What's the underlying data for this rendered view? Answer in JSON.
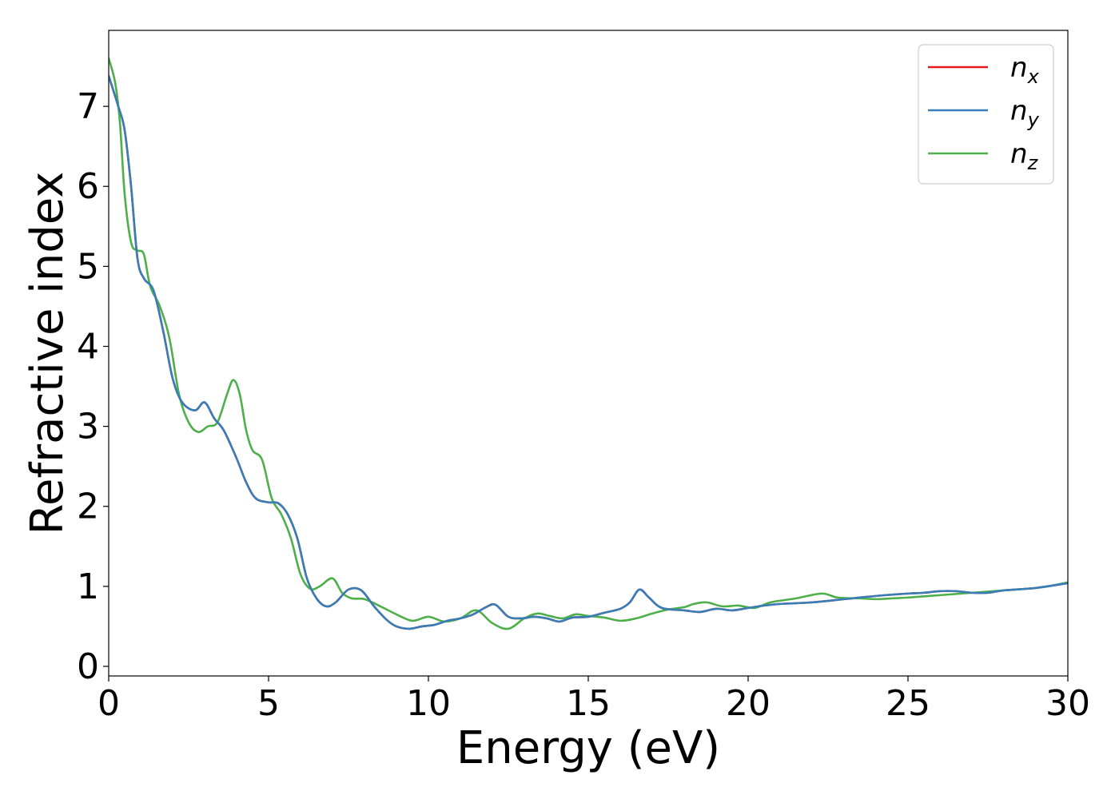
{
  "chart_data": {
    "type": "line",
    "xlabel": "Energy (eV)",
    "ylabel": "Refractive index",
    "xlim": [
      0,
      30
    ],
    "ylim": [
      -0.12,
      7.95
    ],
    "xticks": [
      "0",
      "5",
      "10",
      "15",
      "20",
      "25",
      "30"
    ],
    "yticks": [
      "0",
      "1",
      "2",
      "3",
      "4",
      "5",
      "6",
      "7"
    ],
    "grid": false,
    "legend_position": "top-right",
    "series": [
      {
        "name": "n",
        "subscript": "x",
        "color": "#e41a1c",
        "x": [
          0,
          0.3,
          0.5,
          0.7,
          0.9,
          1.1,
          1.4,
          1.7,
          2.0,
          2.3,
          2.7,
          3.0,
          3.3,
          3.6,
          4.0,
          4.3,
          4.6,
          5.0,
          5.3,
          5.6,
          5.9,
          6.2,
          6.5,
          6.8,
          7.1,
          7.5,
          7.9,
          8.3,
          8.7,
          9.0,
          9.4,
          9.8,
          10.2,
          10.6,
          11.0,
          11.4,
          11.8,
          12.1,
          12.5,
          12.9,
          13.3,
          13.7,
          14.1,
          14.5,
          15.0,
          15.5,
          16.0,
          16.3,
          16.6,
          16.9,
          17.3,
          18.0,
          18.5,
          19.0,
          19.5,
          20.0,
          20.5,
          21.0,
          22.0,
          23.0,
          24.0,
          25.0,
          25.5,
          26.0,
          26.5,
          27.0,
          27.5,
          28.0,
          29.0,
          30.0
        ],
        "values": [
          7.38,
          7.0,
          6.7,
          6.0,
          5.1,
          4.85,
          4.7,
          4.2,
          3.6,
          3.3,
          3.2,
          3.3,
          3.1,
          2.95,
          2.6,
          2.3,
          2.1,
          2.05,
          2.04,
          1.9,
          1.6,
          1.1,
          0.85,
          0.75,
          0.8,
          0.96,
          0.95,
          0.75,
          0.58,
          0.5,
          0.47,
          0.5,
          0.52,
          0.57,
          0.6,
          0.65,
          0.74,
          0.77,
          0.62,
          0.6,
          0.62,
          0.6,
          0.56,
          0.61,
          0.62,
          0.67,
          0.72,
          0.8,
          0.96,
          0.86,
          0.73,
          0.7,
          0.68,
          0.72,
          0.7,
          0.73,
          0.76,
          0.78,
          0.8,
          0.84,
          0.88,
          0.91,
          0.92,
          0.94,
          0.94,
          0.92,
          0.92,
          0.95,
          0.98,
          1.04
        ]
      },
      {
        "name": "n",
        "subscript": "y",
        "color": "#377eb8",
        "x": [
          0,
          0.3,
          0.5,
          0.7,
          0.9,
          1.1,
          1.4,
          1.7,
          2.0,
          2.3,
          2.7,
          3.0,
          3.3,
          3.6,
          4.0,
          4.3,
          4.6,
          5.0,
          5.3,
          5.6,
          5.9,
          6.2,
          6.5,
          6.8,
          7.1,
          7.5,
          7.9,
          8.3,
          8.7,
          9.0,
          9.4,
          9.8,
          10.2,
          10.6,
          11.0,
          11.4,
          11.8,
          12.1,
          12.5,
          12.9,
          13.3,
          13.7,
          14.1,
          14.5,
          15.0,
          15.5,
          16.0,
          16.3,
          16.6,
          16.9,
          17.3,
          18.0,
          18.5,
          19.0,
          19.5,
          20.0,
          20.5,
          21.0,
          22.0,
          23.0,
          24.0,
          25.0,
          25.5,
          26.0,
          26.5,
          27.0,
          27.5,
          28.0,
          29.0,
          30.0
        ],
        "values": [
          7.38,
          7.0,
          6.7,
          6.0,
          5.1,
          4.85,
          4.7,
          4.2,
          3.6,
          3.3,
          3.2,
          3.3,
          3.1,
          2.95,
          2.6,
          2.3,
          2.1,
          2.05,
          2.04,
          1.9,
          1.6,
          1.1,
          0.85,
          0.75,
          0.8,
          0.96,
          0.95,
          0.75,
          0.58,
          0.5,
          0.47,
          0.5,
          0.52,
          0.57,
          0.6,
          0.65,
          0.74,
          0.77,
          0.62,
          0.6,
          0.62,
          0.6,
          0.56,
          0.61,
          0.62,
          0.67,
          0.72,
          0.8,
          0.96,
          0.86,
          0.73,
          0.7,
          0.68,
          0.72,
          0.7,
          0.73,
          0.76,
          0.78,
          0.8,
          0.84,
          0.88,
          0.91,
          0.92,
          0.94,
          0.94,
          0.92,
          0.92,
          0.95,
          0.98,
          1.04
        ]
      },
      {
        "name": "n",
        "subscript": "z",
        "color": "#4daf4a",
        "x": [
          0,
          0.2,
          0.35,
          0.5,
          0.7,
          0.9,
          1.1,
          1.3,
          1.6,
          1.9,
          2.2,
          2.5,
          2.8,
          3.1,
          3.4,
          3.7,
          3.9,
          4.1,
          4.3,
          4.5,
          4.8,
          5.1,
          5.4,
          5.7,
          6.0,
          6.3,
          6.6,
          7.0,
          7.3,
          7.6,
          8.0,
          8.5,
          9.0,
          9.5,
          10.0,
          10.5,
          11.0,
          11.5,
          12.0,
          12.5,
          13.0,
          13.4,
          13.8,
          14.2,
          14.6,
          15.0,
          15.5,
          16.0,
          16.5,
          17.0,
          17.5,
          18.0,
          18.3,
          18.7,
          19.2,
          19.7,
          20.2,
          20.7,
          21.5,
          22.3,
          22.8,
          23.5,
          24.0,
          24.5,
          25.0,
          26.0,
          27.0,
          28.0,
          29.0,
          29.5,
          30.0
        ],
        "values": [
          7.6,
          7.3,
          6.8,
          5.9,
          5.3,
          5.2,
          5.15,
          4.75,
          4.5,
          4.1,
          3.4,
          3.05,
          2.93,
          3.0,
          3.05,
          3.4,
          3.58,
          3.4,
          2.95,
          2.7,
          2.58,
          2.1,
          1.9,
          1.6,
          1.15,
          0.97,
          1.0,
          1.1,
          0.92,
          0.85,
          0.84,
          0.75,
          0.65,
          0.57,
          0.62,
          0.56,
          0.6,
          0.7,
          0.54,
          0.47,
          0.6,
          0.66,
          0.63,
          0.6,
          0.65,
          0.63,
          0.61,
          0.57,
          0.6,
          0.66,
          0.71,
          0.74,
          0.78,
          0.8,
          0.75,
          0.76,
          0.73,
          0.8,
          0.85,
          0.91,
          0.86,
          0.85,
          0.84,
          0.85,
          0.86,
          0.89,
          0.92,
          0.95,
          0.98,
          1.01,
          1.05
        ]
      }
    ]
  }
}
